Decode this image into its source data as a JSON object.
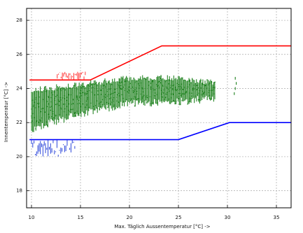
{
  "chart_data": {
    "type": "scatter",
    "xlabel": "Max. Täglich Aussentemperatur [°C] ->",
    "ylabel": "Innentemperatur [°C] ->",
    "xlim": [
      9.5,
      36.5
    ],
    "ylim": [
      17,
      28.7
    ],
    "grid": true,
    "x_ticks": [
      10,
      15,
      20,
      25,
      30,
      35
    ],
    "y_ticks": [
      18,
      20,
      22,
      24,
      26,
      28
    ],
    "x_tick_labels": [
      "10",
      "15",
      "20",
      "25",
      "30",
      "35"
    ],
    "y_tick_labels": [
      "18",
      "20",
      "22",
      "24",
      "26",
      "28"
    ],
    "series": [
      {
        "kind": "line",
        "color": "#ff0000",
        "points": [
          [
            9.8,
            24.5
          ],
          [
            16,
            24.5
          ],
          [
            23.3,
            26.5
          ],
          [
            36.5,
            26.5
          ]
        ]
      },
      {
        "kind": "line",
        "color": "#0000ff",
        "points": [
          [
            9.8,
            21.0
          ],
          [
            25,
            21.0
          ],
          [
            30.2,
            22.0
          ],
          [
            36.5,
            22.0
          ]
        ]
      },
      {
        "kind": "scatter",
        "color": "#1a7f1a",
        "xrange": [
          10,
          28.7
        ],
        "trend_low": [
          [
            10,
            21.4
          ],
          [
            15,
            22.3
          ],
          [
            20,
            22.9
          ],
          [
            25,
            23.0
          ],
          [
            28.7,
            23.2
          ]
        ],
        "trend_high": [
          [
            10,
            24.1
          ],
          [
            15,
            24.4
          ],
          [
            20,
            24.8
          ],
          [
            25,
            24.8
          ],
          [
            28.7,
            24.5
          ]
        ],
        "outliers": [
          [
            30.7,
            23.7
          ],
          [
            30.8,
            24.0
          ],
          [
            30.9,
            24.3
          ],
          [
            30.8,
            24.6
          ]
        ]
      },
      {
        "kind": "scatter",
        "color": "#ff2a2a",
        "xrange": [
          12.5,
          15.5
        ],
        "y_min": 24.5,
        "y_max": 25.0
      },
      {
        "kind": "scatter",
        "color": "#1f3bd8",
        "xrange": [
          10,
          14.5
        ],
        "y_min": 20.0,
        "y_max": 21.0
      }
    ]
  }
}
